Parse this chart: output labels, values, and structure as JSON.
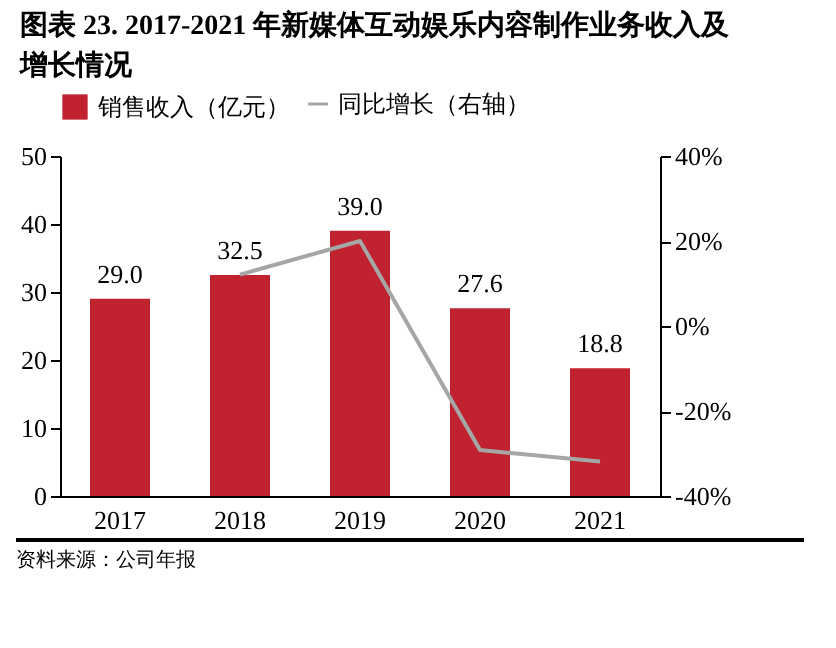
{
  "chart_data": {
    "type": "bar",
    "title": "图表 23. 2017-2021 年新媒体互动娱乐内容制作业务收入及增长情况",
    "categories": [
      "2017",
      "2018",
      "2019",
      "2020",
      "2021"
    ],
    "series": [
      {
        "name": "销售收入（亿元）",
        "color": "#c0222f",
        "values": [
          29.0,
          32.5,
          39.0,
          27.6,
          18.8
        ],
        "value_labels": [
          "29.0",
          "32.5",
          "39.0",
          "27.6",
          "18.8"
        ]
      },
      {
        "name": "同比增长（右轴）",
        "type": "line",
        "axis": "y2",
        "color": "#a6a6a6",
        "values": [
          null,
          12.1,
          20.0,
          -29.2,
          -31.9
        ]
      }
    ],
    "ylim": [
      0,
      50
    ],
    "yticks": [
      0,
      10,
      20,
      30,
      40,
      50
    ],
    "y2lim": [
      -40,
      40
    ],
    "y2ticks": [
      {
        "value": -40,
        "label": "-40%"
      },
      {
        "value": -20,
        "label": "-20%"
      },
      {
        "value": 0,
        "label": "0%"
      },
      {
        "value": 20,
        "label": "20%"
      },
      {
        "value": 40,
        "label": "40%"
      }
    ],
    "grid": false,
    "legend": "top",
    "marker": "none",
    "line_style": "solid",
    "annotations": [
      "资料来源：公司年报"
    ]
  }
}
